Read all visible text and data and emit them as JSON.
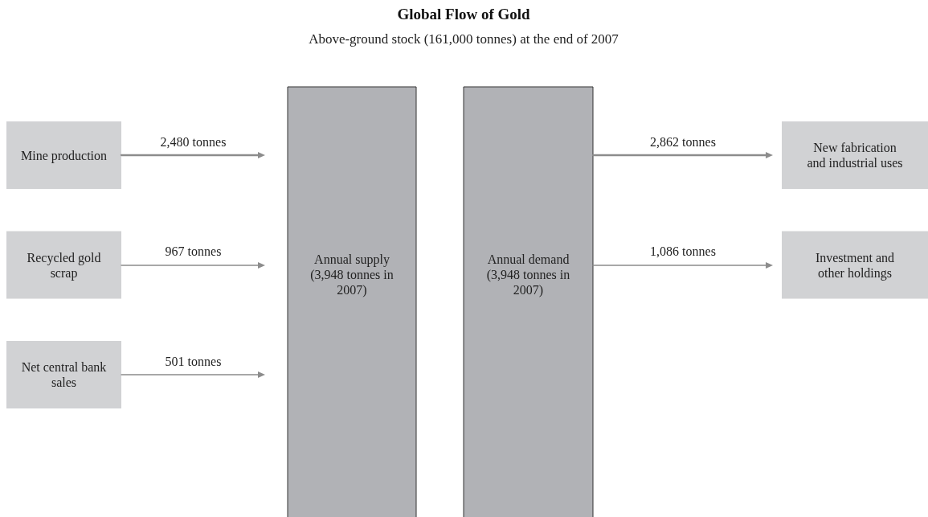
{
  "chart_data": {
    "type": "other",
    "title": "Global Flow of Gold",
    "subtitle": "Above-ground stock (161,000 tonnes) at the end of 2007",
    "categories": [
      "Mine production",
      "Recycled gold scrap",
      "Net central bank sales",
      "New fabrication and industrial uses",
      "Investment and other holdings"
    ],
    "colors": [
      "#d1d2d4",
      "#d1d2d4",
      "#d1d2d4",
      "#d1d2d4",
      "#d1d2d4"
    ],
    "series": [
      {
        "name": "Annual supply (3,948 tonnes in 2007)",
        "values": [
          2480,
          967,
          501,
          null,
          null
        ],
        "value_labels": [
          "2,480 tonnes",
          "967 tonnes",
          "501 tonnes",
          null,
          null
        ]
      },
      {
        "name": "Annual demand (3,948 tonnes in 2007)",
        "values": [
          null,
          null,
          null,
          2862,
          1086
        ],
        "value_labels": [
          null,
          null,
          null,
          "2,862 tonnes",
          "1,086 tonnes"
        ]
      }
    ]
  }
}
